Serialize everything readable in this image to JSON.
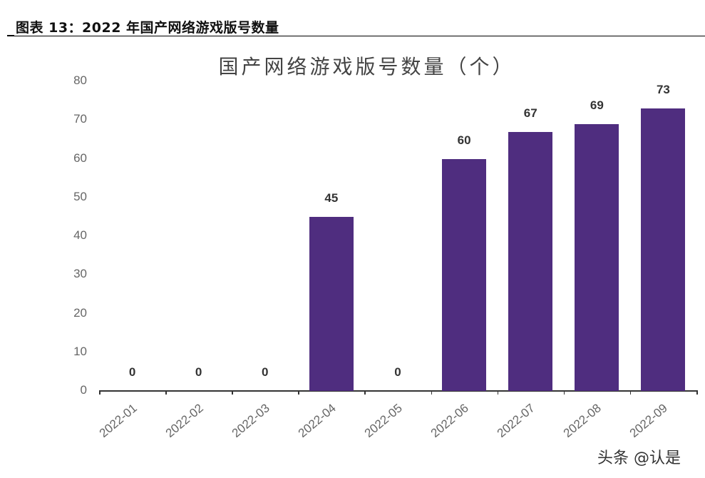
{
  "figure": {
    "caption": "图表 13：2022 年国产网络游戏版号数量",
    "watermark": "头条 @认是"
  },
  "chart_data": {
    "type": "bar",
    "title": "国产网络游戏版号数量（个）",
    "categories": [
      "2022-01",
      "2022-02",
      "2022-03",
      "2022-04",
      "2022-05",
      "2022-06",
      "2022-07",
      "2022-08",
      "2022-09"
    ],
    "values": [
      0,
      0,
      0,
      45,
      0,
      60,
      67,
      69,
      73
    ],
    "data_labels": [
      "0",
      "0",
      "0",
      "45",
      "0",
      "60",
      "67",
      "69",
      "73"
    ],
    "xlabel": "",
    "ylabel": "",
    "ylim": [
      0,
      80
    ],
    "yticks": [
      "0",
      "10",
      "20",
      "30",
      "40",
      "50",
      "60",
      "70",
      "80"
    ],
    "grid": false,
    "legend": null,
    "bar_color": "#4f2d7f"
  }
}
